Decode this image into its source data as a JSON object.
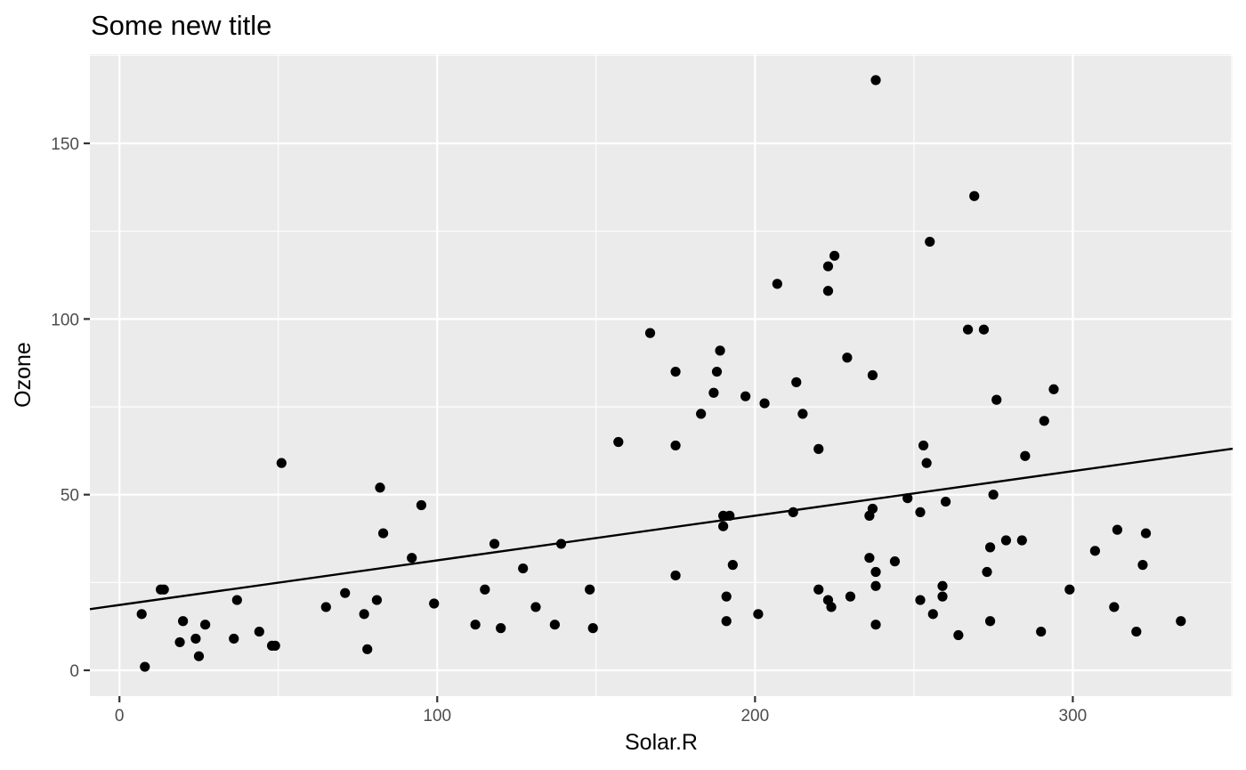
{
  "chart_data": {
    "type": "scatter",
    "title": "Some new title",
    "xlabel": "Solar.R",
    "ylabel": "Ozone",
    "xlim": [
      -9.3,
      350.3
    ],
    "ylim": [
      -7.35,
      175.35
    ],
    "x_ticks": [
      0,
      100,
      200,
      300
    ],
    "y_ticks": [
      0,
      50,
      100,
      150
    ],
    "x_tick_labels": [
      "0",
      "100",
      "200",
      "300"
    ],
    "y_tick_labels": [
      "0",
      "50",
      "100",
      "150"
    ],
    "grid": true,
    "legend": "none",
    "point_color": "#000000",
    "panel_color": "#ebebeb",
    "fit_line": {
      "type": "linear",
      "intercept": 18.6,
      "slope": 0.127,
      "color": "#000000"
    },
    "points": [
      [
        7,
        16
      ],
      [
        8,
        1
      ],
      [
        13,
        23
      ],
      [
        14,
        23
      ],
      [
        19,
        8
      ],
      [
        20,
        14
      ],
      [
        24,
        9
      ],
      [
        25,
        4
      ],
      [
        27,
        13
      ],
      [
        36,
        9
      ],
      [
        37,
        20
      ],
      [
        44,
        11
      ],
      [
        48,
        7
      ],
      [
        49,
        7
      ],
      [
        51,
        59
      ],
      [
        65,
        18
      ],
      [
        71,
        22
      ],
      [
        77,
        16
      ],
      [
        78,
        6
      ],
      [
        81,
        20
      ],
      [
        82,
        52
      ],
      [
        83,
        39
      ],
      [
        92,
        32
      ],
      [
        95,
        47
      ],
      [
        99,
        19
      ],
      [
        112,
        13
      ],
      [
        115,
        23
      ],
      [
        118,
        36
      ],
      [
        120,
        12
      ],
      [
        127,
        29
      ],
      [
        131,
        18
      ],
      [
        137,
        13
      ],
      [
        139,
        36
      ],
      [
        148,
        23
      ],
      [
        149,
        12
      ],
      [
        157,
        65
      ],
      [
        167,
        96
      ],
      [
        175,
        85
      ],
      [
        175,
        64
      ],
      [
        175,
        27
      ],
      [
        183,
        73
      ],
      [
        187,
        79
      ],
      [
        188,
        85
      ],
      [
        189,
        91
      ],
      [
        190,
        44
      ],
      [
        190,
        41
      ],
      [
        191,
        21
      ],
      [
        191,
        14
      ],
      [
        192,
        44
      ],
      [
        193,
        30
      ],
      [
        197,
        78
      ],
      [
        201,
        16
      ],
      [
        203,
        76
      ],
      [
        207,
        110
      ],
      [
        212,
        45
      ],
      [
        213,
        82
      ],
      [
        215,
        73
      ],
      [
        220,
        63
      ],
      [
        220,
        23
      ],
      [
        223,
        115
      ],
      [
        223,
        108
      ],
      [
        223,
        20
      ],
      [
        224,
        18
      ],
      [
        225,
        118
      ],
      [
        229,
        89
      ],
      [
        230,
        21
      ],
      [
        236,
        44
      ],
      [
        236,
        32
      ],
      [
        237,
        84
      ],
      [
        237,
        46
      ],
      [
        238,
        168
      ],
      [
        238,
        28
      ],
      [
        238,
        24
      ],
      [
        238,
        13
      ],
      [
        244,
        31
      ],
      [
        248,
        49
      ],
      [
        252,
        45
      ],
      [
        252,
        20
      ],
      [
        253,
        64
      ],
      [
        254,
        59
      ],
      [
        255,
        122
      ],
      [
        256,
        16
      ],
      [
        259,
        24
      ],
      [
        259,
        21
      ],
      [
        260,
        48
      ],
      [
        264,
        10
      ],
      [
        267,
        97
      ],
      [
        269,
        135
      ],
      [
        272,
        97
      ],
      [
        273,
        28
      ],
      [
        274,
        35
      ],
      [
        274,
        14
      ],
      [
        275,
        50
      ],
      [
        276,
        77
      ],
      [
        279,
        37
      ],
      [
        284,
        37
      ],
      [
        285,
        61
      ],
      [
        290,
        11
      ],
      [
        291,
        71
      ],
      [
        294,
        80
      ],
      [
        299,
        23
      ],
      [
        307,
        34
      ],
      [
        313,
        18
      ],
      [
        314,
        40
      ],
      [
        320,
        11
      ],
      [
        322,
        30
      ],
      [
        323,
        39
      ],
      [
        334,
        14
      ]
    ]
  }
}
